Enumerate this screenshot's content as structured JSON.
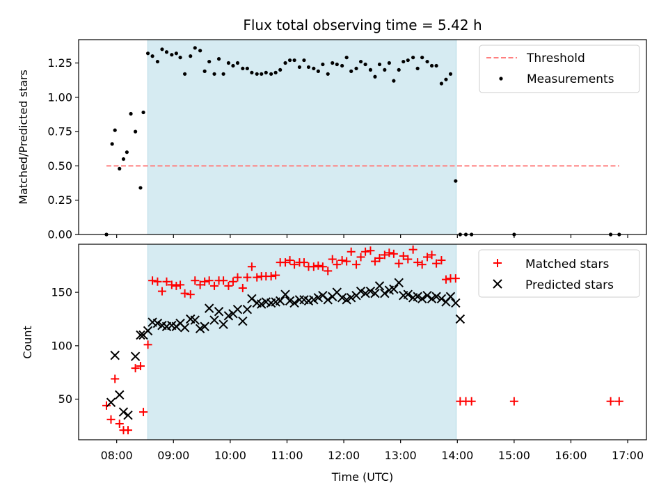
{
  "chart_data": [
    {
      "type": "scatter",
      "title": "Flux total observing time = 5.42 h",
      "xlabel": "",
      "ylabel": "Matched/Predicted stars",
      "ylim": [
        0,
        1.42
      ],
      "xlim_hours": [
        7.33,
        17.33
      ],
      "yticks": [
        {
          "v": 0.0,
          "label": "0.00"
        },
        {
          "v": 0.25,
          "label": "0.25"
        },
        {
          "v": 0.5,
          "label": "0.50"
        },
        {
          "v": 0.75,
          "label": "0.75"
        },
        {
          "v": 1.0,
          "label": "1.00"
        },
        {
          "v": 1.25,
          "label": "1.25"
        }
      ],
      "shaded_interval_hours": [
        8.55,
        13.98
      ],
      "shade_color": "#add8e6",
      "legend_position": "upper right",
      "threshold": {
        "name": "Threshold",
        "y": 0.5,
        "x_range_hours": [
          7.82,
          16.85
        ],
        "color": "#ff7f7f"
      },
      "series": [
        {
          "name": "Measurements",
          "color": "#000000",
          "x": [
            7.82,
            7.92,
            7.97,
            8.05,
            8.12,
            8.18,
            8.25,
            8.33,
            8.42,
            8.47,
            8.55,
            8.63,
            8.72,
            8.8,
            8.88,
            8.97,
            9.05,
            9.12,
            9.2,
            9.3,
            9.38,
            9.47,
            9.55,
            9.63,
            9.72,
            9.8,
            9.88,
            9.97,
            10.05,
            10.13,
            10.22,
            10.3,
            10.38,
            10.47,
            10.55,
            10.63,
            10.72,
            10.8,
            10.88,
            10.97,
            11.05,
            11.13,
            11.22,
            11.3,
            11.38,
            11.47,
            11.55,
            11.63,
            11.72,
            11.8,
            11.88,
            11.97,
            12.05,
            12.13,
            12.22,
            12.3,
            12.38,
            12.47,
            12.55,
            12.63,
            12.72,
            12.8,
            12.88,
            12.97,
            13.05,
            13.13,
            13.22,
            13.3,
            13.38,
            13.47,
            13.55,
            13.63,
            13.72,
            13.8,
            13.88,
            13.97,
            14.05,
            14.15,
            14.25,
            15.0,
            16.7,
            16.85
          ],
          "y": [
            0.0,
            0.66,
            0.76,
            0.48,
            0.55,
            0.6,
            0.88,
            0.75,
            0.34,
            0.89,
            1.32,
            1.3,
            1.26,
            1.35,
            1.33,
            1.31,
            1.32,
            1.29,
            1.17,
            1.3,
            1.36,
            1.34,
            1.19,
            1.26,
            1.17,
            1.28,
            1.17,
            1.25,
            1.23,
            1.25,
            1.21,
            1.21,
            1.18,
            1.17,
            1.17,
            1.18,
            1.17,
            1.18,
            1.2,
            1.25,
            1.27,
            1.27,
            1.22,
            1.27,
            1.22,
            1.21,
            1.19,
            1.24,
            1.17,
            1.25,
            1.24,
            1.23,
            1.29,
            1.19,
            1.21,
            1.26,
            1.24,
            1.2,
            1.15,
            1.24,
            1.2,
            1.25,
            1.12,
            1.2,
            1.26,
            1.27,
            1.29,
            1.21,
            1.29,
            1.26,
            1.23,
            1.23,
            1.1,
            1.13,
            1.17,
            0.39,
            0.0,
            0.0,
            0.0,
            0.0,
            0.0,
            0.0
          ]
        }
      ]
    },
    {
      "type": "scatter",
      "title": "",
      "xlabel": "Time (UTC)",
      "ylabel": "Count",
      "ylim": [
        12,
        195
      ],
      "xlim_hours": [
        7.33,
        17.33
      ],
      "yticks": [
        {
          "v": 50,
          "label": "50"
        },
        {
          "v": 100,
          "label": "100"
        },
        {
          "v": 150,
          "label": "150"
        }
      ],
      "xticks": [
        {
          "v": 8,
          "label": "08:00"
        },
        {
          "v": 9,
          "label": "09:00"
        },
        {
          "v": 10,
          "label": "10:00"
        },
        {
          "v": 11,
          "label": "11:00"
        },
        {
          "v": 12,
          "label": "12:00"
        },
        {
          "v": 13,
          "label": "13:00"
        },
        {
          "v": 14,
          "label": "14:00"
        },
        {
          "v": 15,
          "label": "15:00"
        },
        {
          "v": 16,
          "label": "16:00"
        },
        {
          "v": 17,
          "label": "17:00"
        }
      ],
      "shaded_interval_hours": [
        8.55,
        13.98
      ],
      "shade_color": "#add8e6",
      "legend_position": "upper right",
      "series": [
        {
          "name": "Matched stars",
          "marker": "plus",
          "color": "#ff0000",
          "x": [
            7.82,
            7.9,
            7.97,
            8.05,
            8.12,
            8.2,
            8.33,
            8.42,
            8.47,
            8.55,
            8.63,
            8.72,
            8.8,
            8.88,
            8.97,
            9.05,
            9.12,
            9.2,
            9.3,
            9.38,
            9.47,
            9.55,
            9.63,
            9.72,
            9.8,
            9.88,
            9.97,
            10.05,
            10.13,
            10.22,
            10.3,
            10.38,
            10.47,
            10.55,
            10.63,
            10.72,
            10.8,
            10.88,
            10.97,
            11.05,
            11.13,
            11.22,
            11.3,
            11.38,
            11.47,
            11.55,
            11.63,
            11.72,
            11.8,
            11.88,
            11.97,
            12.05,
            12.13,
            12.22,
            12.3,
            12.38,
            12.47,
            12.55,
            12.63,
            12.72,
            12.8,
            12.88,
            12.97,
            13.05,
            13.13,
            13.22,
            13.3,
            13.38,
            13.47,
            13.55,
            13.63,
            13.72,
            13.8,
            13.88,
            13.97,
            14.05,
            14.15,
            14.25,
            15.0,
            16.7,
            16.85
          ],
          "y": [
            44,
            31,
            69,
            27,
            21,
            21,
            79,
            81,
            38,
            101,
            161,
            160,
            151,
            160,
            157,
            156,
            157,
            149,
            148,
            161,
            157,
            160,
            161,
            156,
            161,
            161,
            156,
            160,
            164,
            154,
            164,
            174,
            164,
            165,
            165,
            165,
            166,
            178,
            178,
            180,
            176,
            178,
            178,
            174,
            174,
            175,
            174,
            170,
            181,
            176,
            180,
            179,
            188,
            176,
            183,
            188,
            189,
            179,
            182,
            185,
            187,
            186,
            177,
            184,
            181,
            190,
            178,
            176,
            183,
            185,
            177,
            180,
            162,
            163,
            163,
            48,
            48,
            48,
            48,
            48,
            48
          ]
        },
        {
          "name": "Predicted stars",
          "marker": "x",
          "color": "#000000",
          "x": [
            7.9,
            7.97,
            8.05,
            8.12,
            8.2,
            8.33,
            8.42,
            8.47,
            8.55,
            8.63,
            8.72,
            8.8,
            8.88,
            8.97,
            9.05,
            9.12,
            9.2,
            9.3,
            9.38,
            9.47,
            9.55,
            9.63,
            9.72,
            9.8,
            9.88,
            9.97,
            10.05,
            10.13,
            10.22,
            10.3,
            10.38,
            10.47,
            10.55,
            10.63,
            10.72,
            10.8,
            10.88,
            10.97,
            11.05,
            11.13,
            11.22,
            11.3,
            11.38,
            11.47,
            11.55,
            11.63,
            11.72,
            11.8,
            11.88,
            11.97,
            12.05,
            12.13,
            12.22,
            12.3,
            12.38,
            12.47,
            12.55,
            12.63,
            12.72,
            12.8,
            12.88,
            12.97,
            13.05,
            13.13,
            13.22,
            13.3,
            13.38,
            13.47,
            13.55,
            13.63,
            13.72,
            13.8,
            13.88,
            13.97,
            14.05
          ],
          "y": [
            47,
            91,
            54,
            38,
            35,
            90,
            110,
            110,
            114,
            122,
            121,
            119,
            118,
            119,
            118,
            121,
            117,
            125,
            124,
            116,
            118,
            135,
            124,
            132,
            120,
            128,
            130,
            134,
            123,
            134,
            144,
            140,
            139,
            141,
            140,
            141,
            142,
            148,
            142,
            140,
            143,
            143,
            142,
            143,
            145,
            147,
            143,
            146,
            150,
            145,
            143,
            145,
            147,
            151,
            149,
            151,
            149,
            156,
            149,
            152,
            153,
            159,
            147,
            148,
            145,
            146,
            144,
            147,
            144,
            146,
            144,
            141,
            146,
            140,
            125
          ]
        }
      ]
    }
  ]
}
